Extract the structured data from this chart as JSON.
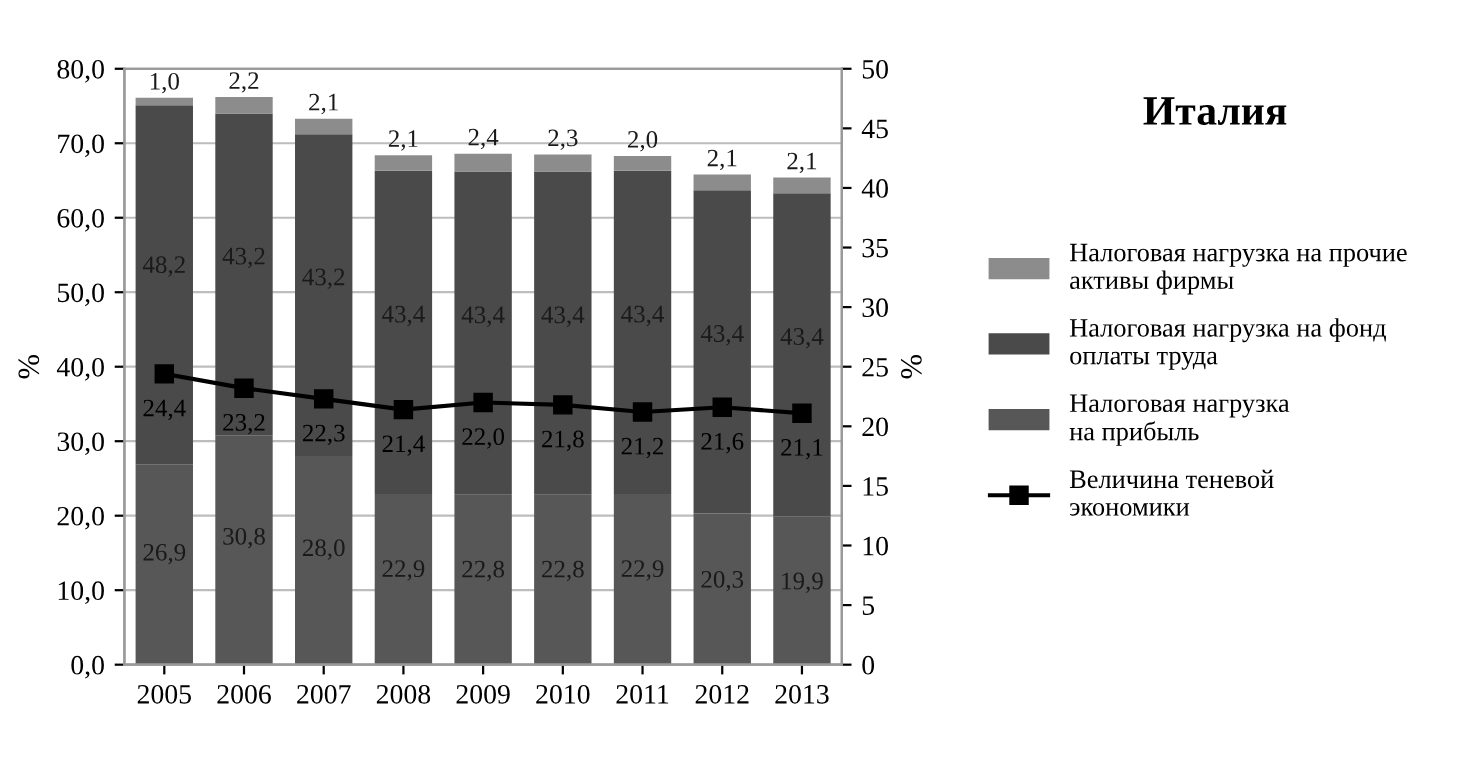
{
  "chart_data": {
    "type": "bar",
    "stacked": true,
    "title": "Италия",
    "ylabel": "%",
    "y2label": "%",
    "categories": [
      "2005",
      "2006",
      "2007",
      "2008",
      "2009",
      "2010",
      "2011",
      "2012",
      "2013"
    ],
    "series": [
      {
        "name": "Налоговая нагрузка на прибыль",
        "color": "#575757",
        "values": [
          26.9,
          30.8,
          28.0,
          22.9,
          22.8,
          22.8,
          22.9,
          20.3,
          19.9
        ],
        "value_labels": [
          "26,9",
          "30,8",
          "28,0",
          "22,9",
          "22,8",
          "22,8",
          "22,9",
          "20,3",
          "19,9"
        ]
      },
      {
        "name": "Налоговая нагрузка на фонд оплаты труда",
        "color": "#4a4a4a",
        "values": [
          48.2,
          43.2,
          43.2,
          43.4,
          43.4,
          43.4,
          43.4,
          43.4,
          43.4
        ],
        "value_labels": [
          "48,2",
          "43,2",
          "43,2",
          "43,4",
          "43,4",
          "43,4",
          "43,4",
          "43,4",
          "43,4"
        ]
      },
      {
        "name": "Налоговая нагрузка на прочие активы фирмы",
        "color": "#8c8c8c",
        "values": [
          1.0,
          2.2,
          2.1,
          2.1,
          2.4,
          2.3,
          2.0,
          2.1,
          2.1
        ],
        "value_labels": [
          "1,0",
          "2,2",
          "2,1",
          "2,1",
          "2,4",
          "2,3",
          "2,0",
          "2,1",
          "2,1"
        ]
      },
      {
        "name": "Величина теневой экономики",
        "type": "line",
        "axis": "y2",
        "color": "#000000",
        "marker": "square",
        "values": [
          24.4,
          23.2,
          22.3,
          21.4,
          22.0,
          21.8,
          21.2,
          21.6,
          21.1
        ],
        "value_labels": [
          "24,4",
          "23,2",
          "22,3",
          "21,4",
          "22,0",
          "21,8",
          "21,2",
          "21,6",
          "21,1"
        ]
      }
    ],
    "ylim": [
      0,
      80
    ],
    "yticks": [
      {
        "value": 0,
        "label": "0,0"
      },
      {
        "value": 10,
        "label": "10,0"
      },
      {
        "value": 20,
        "label": "20,0"
      },
      {
        "value": 30,
        "label": "30,0"
      },
      {
        "value": 40,
        "label": "40,0"
      },
      {
        "value": 50,
        "label": "50,0"
      },
      {
        "value": 60,
        "label": "60,0"
      },
      {
        "value": 70,
        "label": "70,0"
      },
      {
        "value": 80,
        "label": "80,0"
      }
    ],
    "y2lim": [
      0,
      50
    ],
    "y2ticks": [
      0,
      5,
      10,
      15,
      20,
      25,
      30,
      35,
      40,
      45,
      50
    ],
    "grid": "y",
    "legend": "right"
  }
}
